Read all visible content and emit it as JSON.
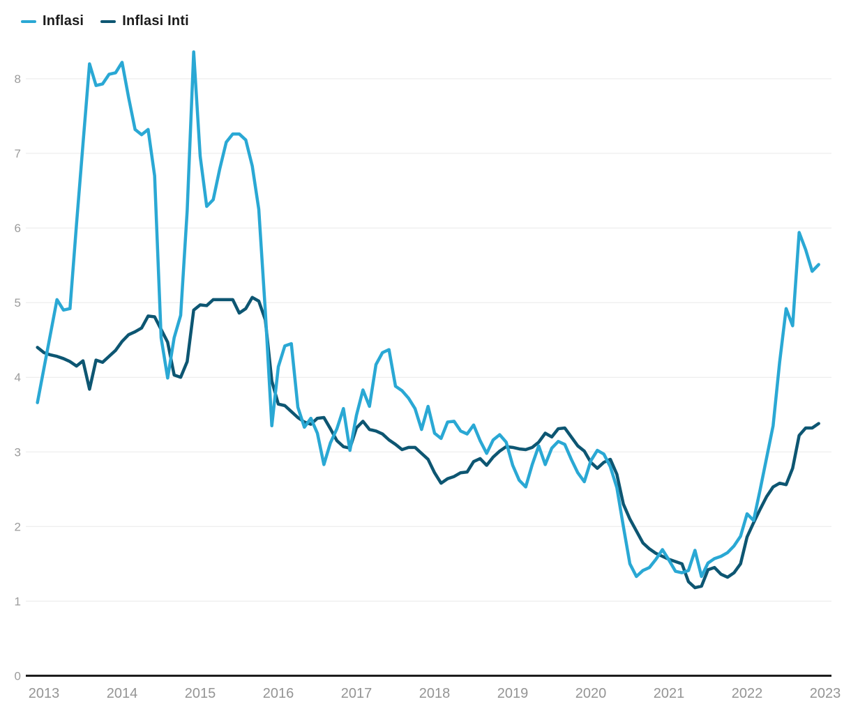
{
  "legend": {
    "items": [
      {
        "label": "Inflasi",
        "color": "#2aa8d4"
      },
      {
        "label": "Inflasi Inti",
        "color": "#0d5672"
      }
    ]
  },
  "colors": {
    "background": "#ffffff",
    "gridline": "#e9e9e9",
    "axis_line": "#1a1a1a",
    "tick_label": "#9b9b9b",
    "legend_text": "#1b1b1b",
    "series_inflasi": "#2aa8d4",
    "series_inflasi_inti": "#0d5672"
  },
  "chart_data": {
    "type": "line",
    "title": "",
    "xlabel": "",
    "ylabel": "",
    "frequency": "monthly",
    "start_month": "2012-12",
    "end_month": "2022-12",
    "x_tick_labels": [
      "2013",
      "2014",
      "2015",
      "2016",
      "2017",
      "2018",
      "2019",
      "2020",
      "2021",
      "2022",
      "2023"
    ],
    "y_tick_labels": [
      "0",
      "1",
      "2",
      "3",
      "4",
      "5",
      "6",
      "7",
      "8"
    ],
    "ylim": [
      0,
      8.6
    ],
    "grid": true,
    "legend_position": "top-left",
    "series": [
      {
        "name": "Inflasi",
        "color": "#2aa8d4",
        "values": [
          3.66,
          4.12,
          4.58,
          5.04,
          4.9,
          4.92,
          6.05,
          7.13,
          8.2,
          7.91,
          7.93,
          8.06,
          8.08,
          8.22,
          7.75,
          7.32,
          7.25,
          7.32,
          6.7,
          4.53,
          3.99,
          4.53,
          4.83,
          6.23,
          8.36,
          6.96,
          6.29,
          6.38,
          6.79,
          7.15,
          7.26,
          7.26,
          7.18,
          6.83,
          6.25,
          4.89,
          3.35,
          4.14,
          4.42,
          4.45,
          3.6,
          3.33,
          3.45,
          3.25,
          2.83,
          3.12,
          3.31,
          3.58,
          3.02,
          3.49,
          3.83,
          3.61,
          4.17,
          4.33,
          4.37,
          3.88,
          3.82,
          3.72,
          3.58,
          3.3,
          3.61,
          3.25,
          3.18,
          3.4,
          3.41,
          3.28,
          3.24,
          3.36,
          3.15,
          2.98,
          3.16,
          3.23,
          3.13,
          2.82,
          2.62,
          2.53,
          2.83,
          3.08,
          2.83,
          3.05,
          3.14,
          3.1,
          2.9,
          2.72,
          2.6,
          2.88,
          3.02,
          2.97,
          2.8,
          2.52,
          2.0,
          1.5,
          1.33,
          1.41,
          1.45,
          1.56,
          1.69,
          1.55,
          1.4,
          1.38,
          1.41,
          1.68,
          1.33,
          1.51,
          1.57,
          1.6,
          1.65,
          1.74,
          1.87,
          2.17,
          2.08,
          2.49,
          2.92,
          3.35,
          4.2,
          4.92,
          4.69,
          5.94,
          5.71,
          5.42,
          5.51
        ]
      },
      {
        "name": "Inflasi Inti",
        "color": "#0d5672",
        "values": [
          4.4,
          4.33,
          4.3,
          4.28,
          4.25,
          4.21,
          4.15,
          4.22,
          3.84,
          4.23,
          4.2,
          4.28,
          4.36,
          4.48,
          4.57,
          4.61,
          4.66,
          4.82,
          4.81,
          4.64,
          4.47,
          4.03,
          4.0,
          4.21,
          4.9,
          4.97,
          4.96,
          5.04,
          5.04,
          5.04,
          5.04,
          4.86,
          4.92,
          5.07,
          5.02,
          4.77,
          3.95,
          3.64,
          3.62,
          3.54,
          3.46,
          3.4,
          3.37,
          3.45,
          3.46,
          3.31,
          3.15,
          3.07,
          3.05,
          3.32,
          3.41,
          3.3,
          3.28,
          3.24,
          3.16,
          3.1,
          3.03,
          3.06,
          3.06,
          2.98,
          2.9,
          2.72,
          2.58,
          2.64,
          2.67,
          2.72,
          2.73,
          2.87,
          2.91,
          2.82,
          2.93,
          3.01,
          3.07,
          3.06,
          3.04,
          3.03,
          3.06,
          3.13,
          3.25,
          3.2,
          3.31,
          3.32,
          3.2,
          3.08,
          3.01,
          2.86,
          2.78,
          2.86,
          2.9,
          2.7,
          2.3,
          2.1,
          1.94,
          1.78,
          1.7,
          1.64,
          1.6,
          1.56,
          1.53,
          1.5,
          1.26,
          1.18,
          1.2,
          1.42,
          1.45,
          1.36,
          1.32,
          1.38,
          1.5,
          1.86,
          2.05,
          2.23,
          2.4,
          2.53,
          2.58,
          2.56,
          2.78,
          3.22,
          3.32,
          3.32,
          3.38
        ]
      }
    ]
  }
}
